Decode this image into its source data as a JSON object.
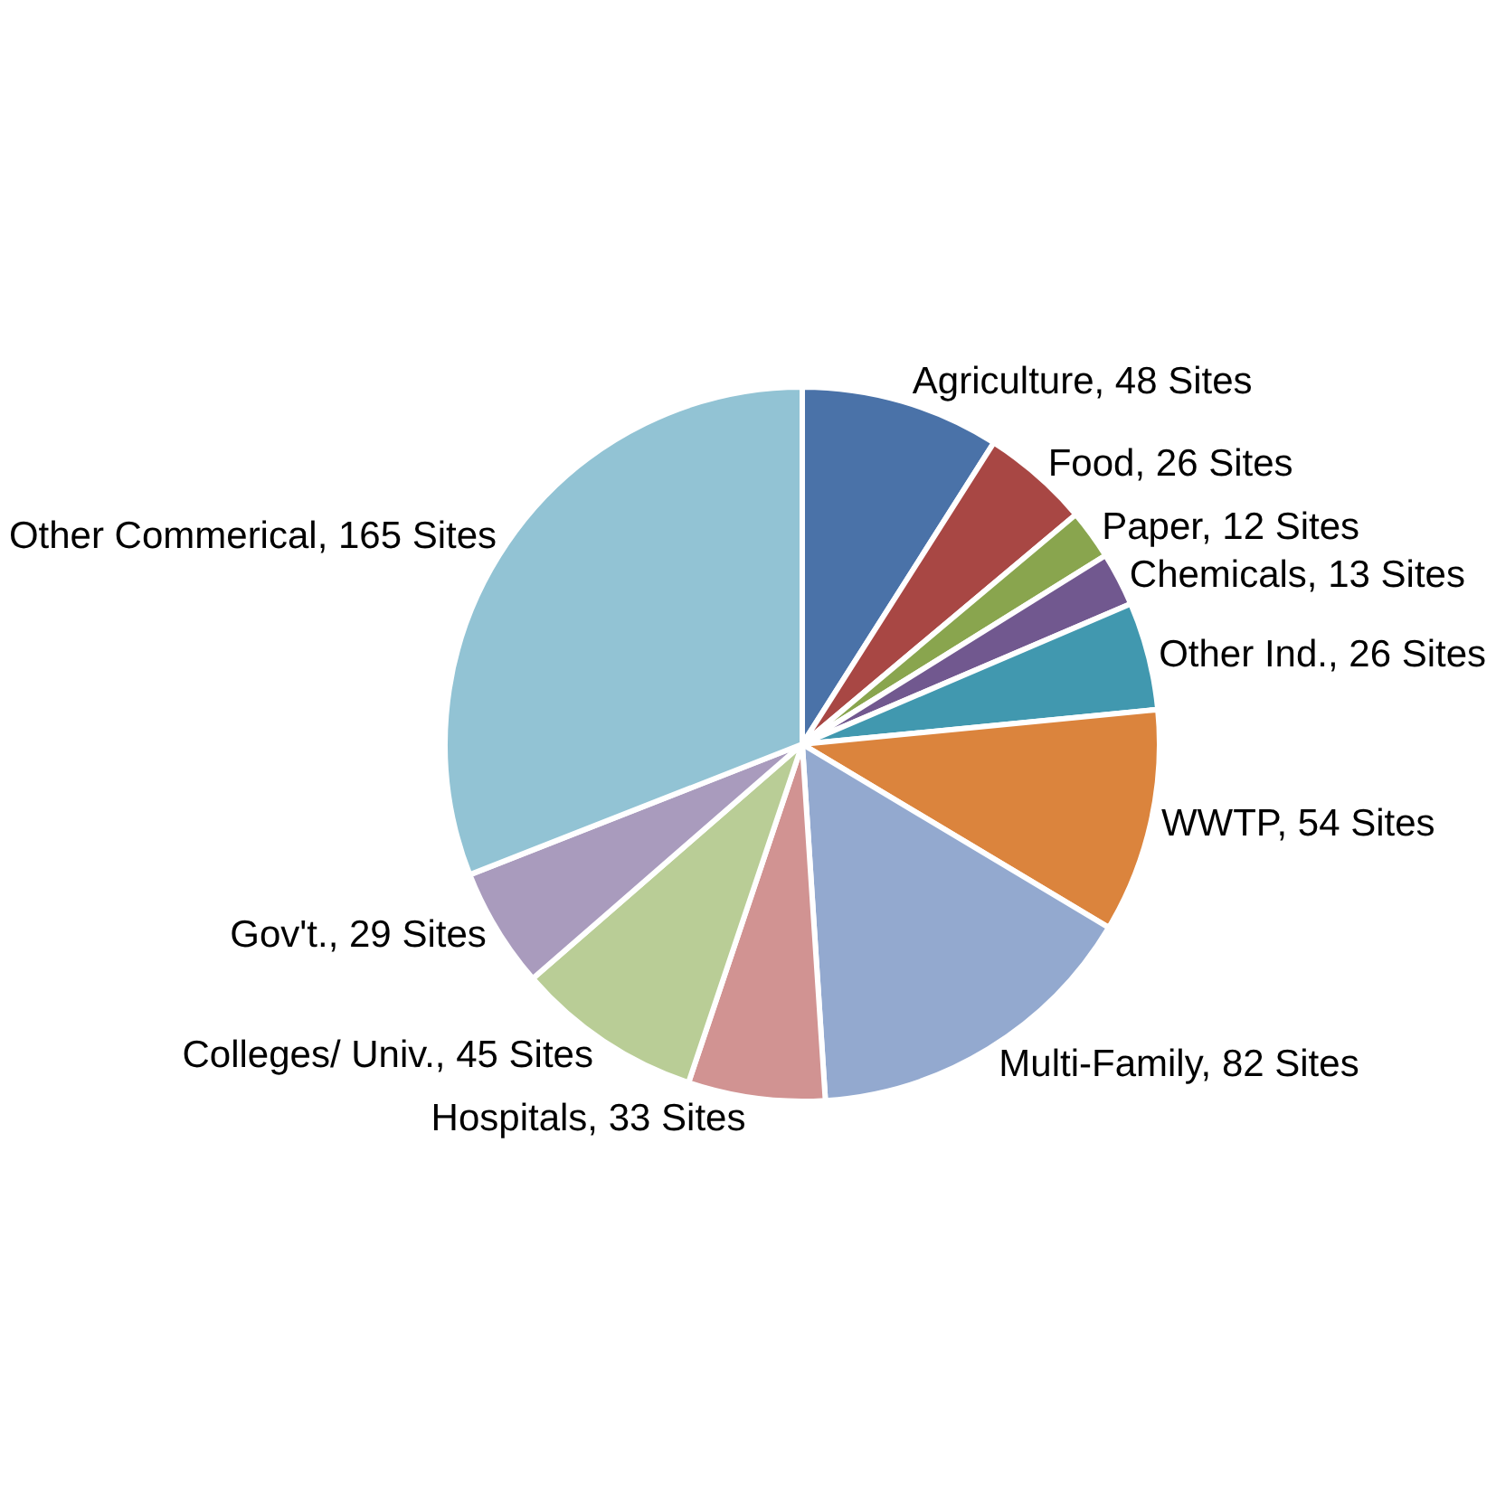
{
  "chart_data": {
    "type": "pie",
    "categories": [
      "Agriculture",
      "Food",
      "Paper",
      "Chemicals",
      "Other Ind.",
      "WWTP",
      "Multi-Family",
      "Hospitals",
      "Colleges/ Univ.",
      "Gov't.",
      "Other Commerical"
    ],
    "values": [
      48,
      26,
      12,
      13,
      26,
      54,
      82,
      33,
      45,
      29,
      165
    ],
    "value_labels": [
      "48 Sites",
      "26 Sites",
      "12 Sites",
      "13 Sites",
      "26 Sites",
      "54 Sites",
      "82 Sites",
      "33 Sites",
      "45 Sites",
      "29 Sites",
      "165 Sites"
    ],
    "colors": [
      "#4a72a8",
      "#a84744",
      "#89a54e",
      "#71588f",
      "#4198af",
      "#db843d",
      "#93a9cf",
      "#d19392",
      "#b9cd96",
      "#a99bbd",
      "#92c3d4"
    ],
    "legend": false
  }
}
